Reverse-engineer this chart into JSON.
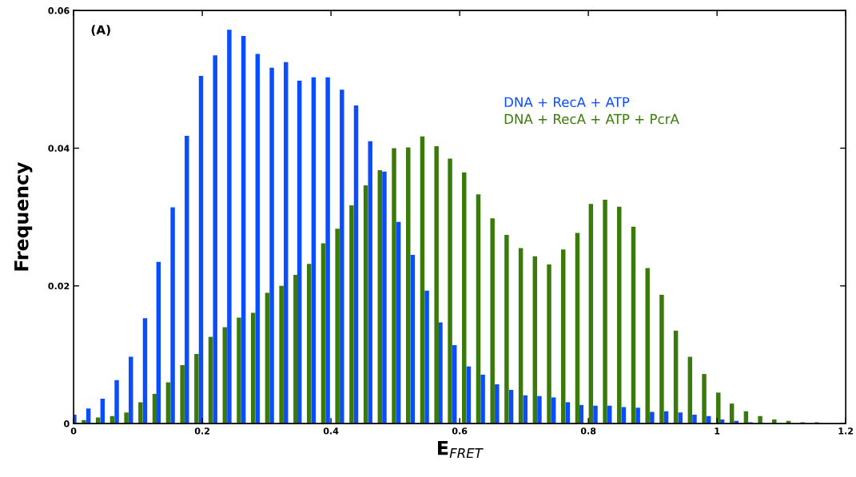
{
  "chart_data": {
    "type": "bar",
    "xlabel": "E$_{FRET}$",
    "ylabel": "Frequency",
    "annotations": [
      "(A)"
    ],
    "xlim": [
      0,
      1.2
    ],
    "xticks": [
      0,
      0.2,
      0.4,
      0.6,
      0.8,
      1,
      1.2
    ],
    "ylim": [
      0,
      0.06
    ],
    "yticks": [
      0,
      0.02,
      0.04,
      0.06
    ],
    "grid": false,
    "legend": "top right",
    "series": [
      {
        "name": "DNA + RecA + ATP",
        "color": "#0a4dff",
        "x": [
          0.001,
          0.023,
          0.045,
          0.067,
          0.089,
          0.111,
          0.132,
          0.154,
          0.176,
          0.198,
          0.22,
          0.242,
          0.264,
          0.286,
          0.308,
          0.33,
          0.351,
          0.373,
          0.395,
          0.417,
          0.439,
          0.461,
          0.483,
          0.505,
          0.527,
          0.549,
          0.57,
          0.592,
          0.614,
          0.636,
          0.658,
          0.68,
          0.702,
          0.724,
          0.746,
          0.768,
          0.789,
          0.811,
          0.833,
          0.855,
          0.877,
          0.899,
          0.921,
          0.943,
          0.965,
          0.987,
          1.008,
          1.03,
          1.052
        ],
        "values": [
          0.0013,
          0.0022,
          0.0036,
          0.0063,
          0.0097,
          0.0153,
          0.0235,
          0.0314,
          0.0418,
          0.0505,
          0.0535,
          0.0572,
          0.0563,
          0.0537,
          0.0517,
          0.0525,
          0.0498,
          0.0503,
          0.0503,
          0.0485,
          0.0462,
          0.041,
          0.0366,
          0.0293,
          0.0245,
          0.0193,
          0.0147,
          0.0114,
          0.0083,
          0.0071,
          0.0057,
          0.0049,
          0.0041,
          0.004,
          0.0038,
          0.0031,
          0.0027,
          0.0026,
          0.0026,
          0.0024,
          0.0023,
          0.0017,
          0.0018,
          0.0016,
          0.0013,
          0.0011,
          0.0006,
          0.0004,
          0.0002
        ]
      },
      {
        "name": "DNA + RecA + ATP + PcrA",
        "color": "#3a7a0a",
        "x": [
          0.016,
          0.038,
          0.06,
          0.082,
          0.104,
          0.126,
          0.147,
          0.169,
          0.191,
          0.213,
          0.235,
          0.257,
          0.279,
          0.301,
          0.323,
          0.345,
          0.366,
          0.388,
          0.41,
          0.432,
          0.454,
          0.476,
          0.498,
          0.52,
          0.542,
          0.564,
          0.585,
          0.607,
          0.629,
          0.651,
          0.673,
          0.695,
          0.717,
          0.739,
          0.761,
          0.783,
          0.804,
          0.826,
          0.848,
          0.87,
          0.892,
          0.914,
          0.936,
          0.958,
          0.98,
          1.002,
          1.023,
          1.045,
          1.067,
          1.089,
          1.111,
          1.133,
          1.155
        ],
        "values": [
          0.0005,
          0.0009,
          0.0011,
          0.0016,
          0.0031,
          0.0043,
          0.006,
          0.0085,
          0.0101,
          0.0126,
          0.014,
          0.0154,
          0.0161,
          0.019,
          0.02,
          0.0216,
          0.0232,
          0.0262,
          0.0283,
          0.0317,
          0.0346,
          0.0368,
          0.04,
          0.0401,
          0.0417,
          0.0403,
          0.0385,
          0.0365,
          0.0333,
          0.0298,
          0.0274,
          0.0255,
          0.0243,
          0.0231,
          0.0253,
          0.0277,
          0.0319,
          0.0325,
          0.0315,
          0.0286,
          0.0226,
          0.0187,
          0.0135,
          0.0097,
          0.0072,
          0.0045,
          0.0029,
          0.0018,
          0.0011,
          0.0006,
          0.0004,
          0.0002,
          0.0002
        ]
      }
    ]
  }
}
